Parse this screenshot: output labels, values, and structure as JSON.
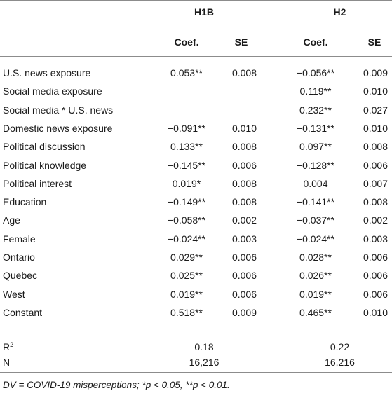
{
  "table": {
    "groups": [
      {
        "label": "H1B"
      },
      {
        "label": "H2"
      }
    ],
    "subheaders": {
      "coef": "Coef.",
      "se": "SE"
    },
    "rows": [
      {
        "label": "U.S. news exposure",
        "h1b_coef": "0.053**",
        "h1b_se": "0.008",
        "h2_coef": "−0.056**",
        "h2_se": "0.009"
      },
      {
        "label": "Social media exposure",
        "h1b_coef": "",
        "h1b_se": "",
        "h2_coef": "0.119**",
        "h2_se": "0.010"
      },
      {
        "label": "Social media * U.S. news",
        "h1b_coef": "",
        "h1b_se": "",
        "h2_coef": "0.232**",
        "h2_se": "0.027"
      },
      {
        "label": "Domestic news exposure",
        "h1b_coef": "−0.091**",
        "h1b_se": "0.010",
        "h2_coef": "−0.131**",
        "h2_se": "0.010"
      },
      {
        "label": "Political discussion",
        "h1b_coef": "0.133**",
        "h1b_se": "0.008",
        "h2_coef": "0.097**",
        "h2_se": "0.008"
      },
      {
        "label": "Political knowledge",
        "h1b_coef": "−0.145**",
        "h1b_se": "0.006",
        "h2_coef": "−0.128**",
        "h2_se": "0.006"
      },
      {
        "label": "Political interest",
        "h1b_coef": "0.019*",
        "h1b_se": "0.008",
        "h2_coef": "0.004",
        "h2_se": "0.007"
      },
      {
        "label": "Education",
        "h1b_coef": "−0.149**",
        "h1b_se": "0.008",
        "h2_coef": "−0.141**",
        "h2_se": "0.008"
      },
      {
        "label": "Age",
        "h1b_coef": "−0.058**",
        "h1b_se": "0.002",
        "h2_coef": "−0.037**",
        "h2_se": "0.002"
      },
      {
        "label": "Female",
        "h1b_coef": "−0.024**",
        "h1b_se": "0.003",
        "h2_coef": "−0.024**",
        "h2_se": "0.003"
      },
      {
        "label": "Ontario",
        "h1b_coef": "0.029**",
        "h1b_se": "0.006",
        "h2_coef": "0.028**",
        "h2_se": "0.006"
      },
      {
        "label": "Quebec",
        "h1b_coef": "0.025**",
        "h1b_se": "0.006",
        "h2_coef": "0.026**",
        "h2_se": "0.006"
      },
      {
        "label": "West",
        "h1b_coef": "0.019**",
        "h1b_se": "0.006",
        "h2_coef": "0.019**",
        "h2_se": "0.006"
      },
      {
        "label": "Constant",
        "h1b_coef": "0.518**",
        "h1b_se": "0.009",
        "h2_coef": "0.465**",
        "h2_se": "0.010"
      }
    ],
    "stats": [
      {
        "label_base": "R",
        "label_sup": "2",
        "h1b": "0.18",
        "h2": "0.22"
      },
      {
        "label_base": "N",
        "label_sup": "",
        "h1b": "16,216",
        "h2": "16,216"
      }
    ]
  },
  "footnote": "DV = COVID-19 misperceptions; *p < 0.05, **p < 0.01."
}
